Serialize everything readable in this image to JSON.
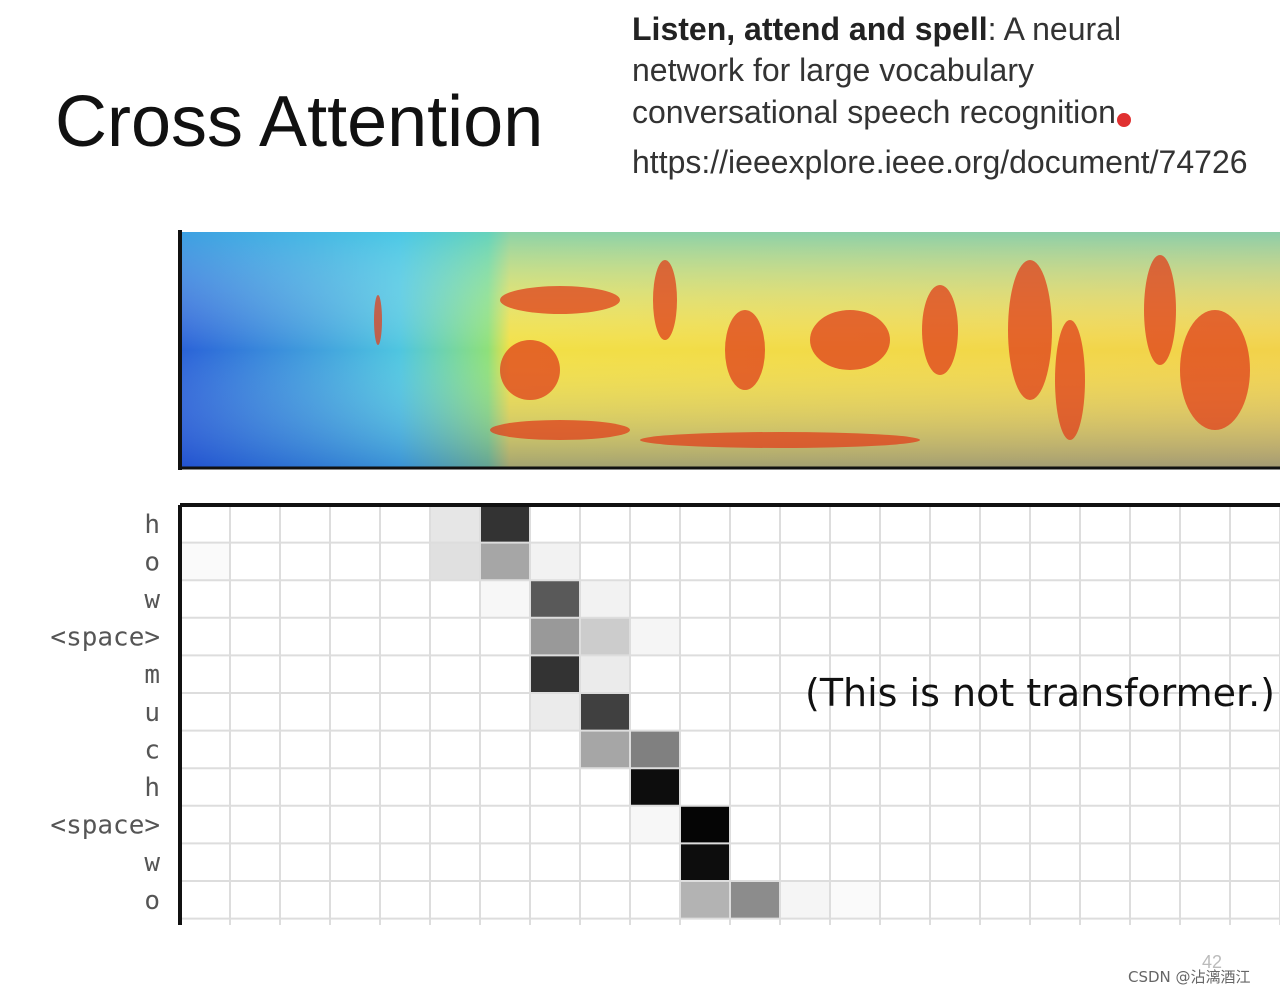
{
  "slide": {
    "title": "Cross Attention",
    "reference": {
      "bold": "Listen, attend and spell",
      "first_rest": ": A neural",
      "lines": [
        "network for large vocabulary",
        "conversational speech recognition"
      ],
      "url": "https://ieeexplore.ieee.org/document/74726"
    },
    "note": "(This is not transformer.)",
    "page_number": "42",
    "watermark": "CSDN @沾漓酒江"
  },
  "attention": {
    "row_labels": [
      "h",
      "o",
      "w",
      "<space>",
      "m",
      "u",
      "c",
      "h",
      "<space>",
      "w",
      "o"
    ],
    "weights": [
      [
        0,
        0,
        0,
        0,
        0,
        0.1,
        0.8,
        0,
        0,
        0,
        0,
        0,
        0,
        0,
        0,
        0,
        0,
        0,
        0,
        0,
        0,
        0
      ],
      [
        0.02,
        0,
        0,
        0,
        0,
        0.12,
        0.35,
        0.05,
        0,
        0,
        0,
        0,
        0,
        0,
        0,
        0,
        0,
        0,
        0,
        0,
        0,
        0
      ],
      [
        0,
        0,
        0,
        0,
        0,
        0,
        0.03,
        0.65,
        0.05,
        0,
        0,
        0,
        0,
        0,
        0,
        0,
        0,
        0,
        0,
        0,
        0,
        0
      ],
      [
        0,
        0,
        0,
        0,
        0,
        0,
        0,
        0.4,
        0.2,
        0.04,
        0,
        0,
        0,
        0,
        0,
        0,
        0,
        0,
        0,
        0,
        0,
        0
      ],
      [
        0,
        0,
        0,
        0,
        0,
        0,
        0,
        0.8,
        0.08,
        0,
        0,
        0,
        0,
        0,
        0,
        0,
        0,
        0,
        0,
        0,
        0,
        0
      ],
      [
        0,
        0,
        0,
        0,
        0,
        0,
        0,
        0.08,
        0.75,
        0,
        0,
        0,
        0,
        0,
        0,
        0,
        0,
        0,
        0,
        0,
        0,
        0
      ],
      [
        0,
        0,
        0,
        0,
        0,
        0,
        0,
        0,
        0.35,
        0.5,
        0,
        0,
        0,
        0,
        0,
        0,
        0,
        0,
        0,
        0,
        0,
        0
      ],
      [
        0,
        0,
        0,
        0,
        0,
        0,
        0,
        0,
        0,
        0.95,
        0,
        0,
        0,
        0,
        0,
        0,
        0,
        0,
        0,
        0,
        0,
        0
      ],
      [
        0,
        0,
        0,
        0,
        0,
        0,
        0,
        0,
        0,
        0.03,
        0.98,
        0,
        0,
        0,
        0,
        0,
        0,
        0,
        0,
        0,
        0,
        0
      ],
      [
        0,
        0,
        0,
        0,
        0,
        0,
        0,
        0,
        0,
        0,
        0.95,
        0,
        0,
        0,
        0,
        0,
        0,
        0,
        0,
        0,
        0,
        0
      ],
      [
        0,
        0,
        0,
        0,
        0,
        0,
        0,
        0,
        0,
        0,
        0.3,
        0.45,
        0.04,
        0.02,
        0,
        0,
        0,
        0,
        0,
        0,
        0,
        0
      ]
    ]
  }
}
